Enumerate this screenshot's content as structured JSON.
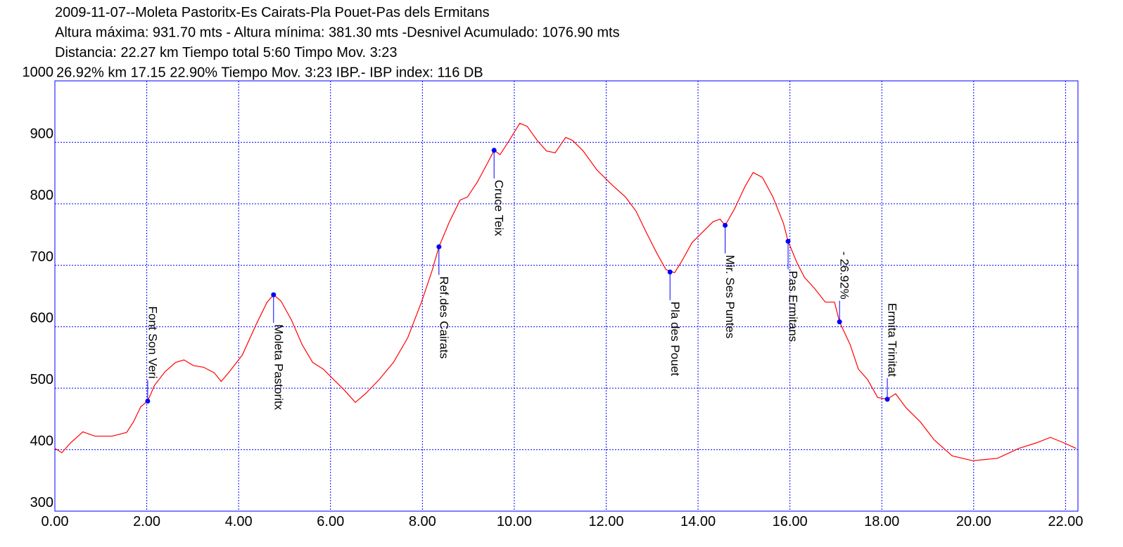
{
  "chart_data": {
    "type": "line",
    "title_lines": [
      "2009-11-07--Moleta Pastoritx-Es Cairats-Pla Pouet-Pas dels Ermitans",
      "Altura máxima: 931.70 mts - Altura mínima: 381.30 mts -Desnivel Acumulado: 1076.90 mts",
      "Distancia: 22.27 km  Tiempo total 5:60 Timpo Mov. 3:23",
      "26.92% km 17.15  22.90%  Tiempo Mov. 3:23 IBP.- IBP index: 116 DB"
    ],
    "color": "#ff0000",
    "marker_color": "#0000ff",
    "grid_color": "#0000ff",
    "x": [
      0,
      0.15,
      0.34,
      0.61,
      0.87,
      1.25,
      1.56,
      1.71,
      1.87,
      2.02,
      2.17,
      2.4,
      2.63,
      2.81,
      3.01,
      3.24,
      3.47,
      3.62,
      3.78,
      4.08,
      4.39,
      4.62,
      4.76,
      4.92,
      5.15,
      5.38,
      5.61,
      5.84,
      6.07,
      6.3,
      6.54,
      6.76,
      7.06,
      7.37,
      7.68,
      7.98,
      8.21,
      8.36,
      8.59,
      8.82,
      8.98,
      9.2,
      9.43,
      9.56,
      9.69,
      9.89,
      10.12,
      10.28,
      10.5,
      10.7,
      10.89,
      11.12,
      11.27,
      11.5,
      11.8,
      12.11,
      12.42,
      12.65,
      12.87,
      13.1,
      13.3,
      13.49,
      13.64,
      13.87,
      14.1,
      14.33,
      14.48,
      14.59,
      14.79,
      15.02,
      15.2,
      15.4,
      15.63,
      15.86,
      15.96,
      16.16,
      16.32,
      16.54,
      16.77,
      16.97,
      17.08,
      17.31,
      17.49,
      17.69,
      17.91,
      18.12,
      18.3,
      18.53,
      18.84,
      19.14,
      19.53,
      19.98,
      20.52,
      20.98,
      21.36,
      21.67,
      21.97,
      22.23
    ],
    "values": [
      402,
      395,
      411,
      429,
      422,
      422,
      428,
      445,
      470,
      479,
      505,
      527,
      542,
      546,
      537,
      534,
      525,
      511,
      525,
      554,
      605,
      640,
      652,
      642,
      611,
      571,
      542,
      531,
      514,
      497,
      477,
      491,
      514,
      542,
      582,
      640,
      691,
      730,
      771,
      806,
      811,
      836,
      868,
      887,
      880,
      903,
      931,
      926,
      903,
      886,
      883,
      908,
      903,
      886,
      855,
      832,
      811,
      788,
      754,
      720,
      693,
      688,
      706,
      737,
      754,
      771,
      775,
      765,
      791,
      828,
      851,
      843,
      811,
      768,
      739,
      703,
      680,
      662,
      640,
      640,
      608,
      571,
      531,
      514,
      485,
      482,
      491,
      468,
      445,
      416,
      390,
      382,
      386,
      402,
      411,
      420,
      411,
      402
    ],
    "markers": [
      {
        "label": "Font Son Veri",
        "x": 2.02,
        "y": 479,
        "side": "above"
      },
      {
        "label": "Moleta Pastoritx",
        "x": 4.76,
        "y": 652,
        "side": "below"
      },
      {
        "label": "Ref.des Cairats",
        "x": 8.36,
        "y": 730,
        "side": "below"
      },
      {
        "label": "Cruce Teix",
        "x": 9.56,
        "y": 887,
        "side": "below"
      },
      {
        "label": "Pla des Pouet",
        "x": 13.39,
        "y": 689,
        "side": "below"
      },
      {
        "label": "Mir. Ses Puntes",
        "x": 14.59,
        "y": 765,
        "side": "below"
      },
      {
        "label": "Pas Ermitans",
        "x": 15.96,
        "y": 739,
        "side": "below"
      },
      {
        "label": "- 26.92%",
        "x": 17.08,
        "y": 608,
        "side": "above"
      },
      {
        "label": "Ermita Trinitat",
        "x": 18.12,
        "y": 482,
        "side": "above"
      }
    ],
    "xlim": [
      0,
      22.27
    ],
    "ylim": [
      300,
      1000
    ],
    "xticks": [
      {
        "value": 0,
        "label": "0.00"
      },
      {
        "value": 2,
        "label": "2.00"
      },
      {
        "value": 4,
        "label": "4.00"
      },
      {
        "value": 6,
        "label": "6.00"
      },
      {
        "value": 8,
        "label": "8.00"
      },
      {
        "value": 10,
        "label": "10.00"
      },
      {
        "value": 12,
        "label": "12.00"
      },
      {
        "value": 14,
        "label": "14.00"
      },
      {
        "value": 16,
        "label": "16.00"
      },
      {
        "value": 18,
        "label": "18.00"
      },
      {
        "value": 20,
        "label": "20.00"
      },
      {
        "value": 22,
        "label": "22.00"
      }
    ],
    "yticks": [
      300,
      400,
      500,
      600,
      700,
      800,
      900,
      1000
    ],
    "grid": true
  }
}
